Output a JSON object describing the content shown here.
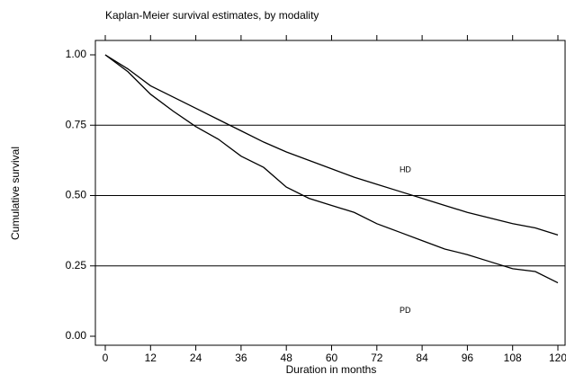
{
  "chart_data": {
    "type": "line",
    "title": "Kaplan-Meier survival estimates, by modality",
    "x_label": "Duration in months",
    "y_label": "Cumulative survival",
    "x": [
      0,
      6,
      12,
      18,
      24,
      30,
      36,
      42,
      48,
      54,
      60,
      66,
      72,
      78,
      84,
      90,
      96,
      102,
      108,
      114,
      120
    ],
    "series": [
      {
        "name": "HD",
        "color": "#000000",
        "values": [
          1.0,
          0.95,
          0.89,
          0.85,
          0.81,
          0.77,
          0.73,
          0.69,
          0.655,
          0.625,
          0.595,
          0.565,
          0.54,
          0.515,
          0.49,
          0.465,
          0.44,
          0.42,
          0.4,
          0.385,
          0.36
        ]
      },
      {
        "name": "PD",
        "color": "#000000",
        "values": [
          1.0,
          0.94,
          0.86,
          0.8,
          0.745,
          0.7,
          0.64,
          0.6,
          0.53,
          0.49,
          0.465,
          0.44,
          0.4,
          0.37,
          0.34,
          0.31,
          0.29,
          0.265,
          0.24,
          0.23,
          0.19
        ]
      }
    ],
    "xlim": [
      0,
      120
    ],
    "xticks": [
      0,
      12,
      24,
      36,
      48,
      60,
      72,
      84,
      96,
      108,
      120
    ],
    "ylim": [
      0,
      1
    ],
    "yticks": [
      {
        "value": 0,
        "label": "0.00"
      },
      {
        "value": 0.25,
        "label": "0.25"
      },
      {
        "value": 0.5,
        "label": "0.50"
      },
      {
        "value": 0.75,
        "label": "0.75"
      },
      {
        "value": 1,
        "label": "1.00"
      }
    ],
    "grid": true
  }
}
